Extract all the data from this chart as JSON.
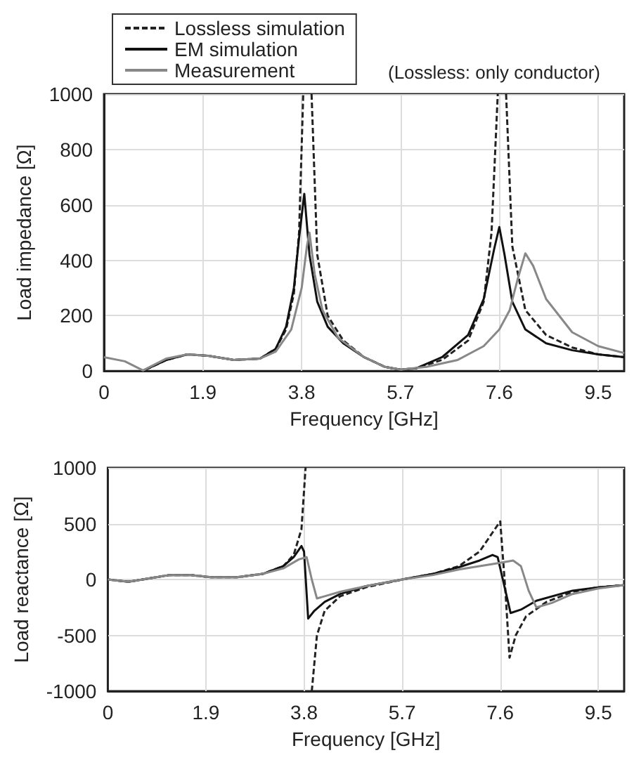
{
  "chart_data": [
    {
      "type": "line",
      "xlabel": "Frequency [GHz]",
      "ylabel": "Load impedance [Ω]",
      "annotations": [
        "(Lossless: only conductor)"
      ],
      "xlim": [
        0,
        10
      ],
      "xticks": [
        0,
        1.9,
        3.8,
        5.7,
        7.6,
        9.5
      ],
      "ylim": [
        0,
        1000
      ],
      "yticks": [
        0,
        200,
        400,
        600,
        800,
        1000
      ],
      "grid": true,
      "legend": "top left",
      "marker": "none",
      "series": [
        {
          "name": "Lossless simulation",
          "color": "#222222",
          "line_style": "dashed",
          "x": [
            0.8,
            1.2,
            1.6,
            2.0,
            2.5,
            3.0,
            3.3,
            3.5,
            3.65,
            3.75,
            3.83,
            3.91,
            3.99,
            4.1,
            4.3,
            4.6,
            5.0,
            5.4,
            5.7,
            6.0,
            6.5,
            7.0,
            7.3,
            7.45,
            7.57,
            7.65,
            7.73,
            7.85,
            8.1,
            8.5,
            9.0,
            9.5,
            10
          ],
          "values": [
            5,
            40,
            60,
            55,
            40,
            45,
            80,
            150,
            280,
            500,
            1000,
            null,
            1000,
            420,
            200,
            110,
            50,
            15,
            5,
            10,
            40,
            110,
            250,
            500,
            1000,
            null,
            1000,
            450,
            220,
            130,
            85,
            60,
            50
          ]
        },
        {
          "name": "EM simulation",
          "color": "#111111",
          "line_style": "solid",
          "x": [
            0.8,
            1.2,
            1.6,
            2.0,
            2.5,
            3.0,
            3.3,
            3.5,
            3.65,
            3.75,
            3.85,
            3.95,
            4.1,
            4.3,
            4.6,
            5.0,
            5.4,
            5.7,
            6.0,
            6.5,
            7.0,
            7.3,
            7.5,
            7.6,
            7.7,
            7.85,
            8.1,
            8.5,
            9.0,
            9.5,
            10
          ],
          "values": [
            5,
            40,
            60,
            55,
            40,
            45,
            80,
            160,
            300,
            480,
            640,
            420,
            250,
            160,
            100,
            50,
            15,
            5,
            10,
            50,
            130,
            260,
            440,
            520,
            420,
            250,
            150,
            100,
            75,
            60,
            50
          ]
        },
        {
          "name": "Measurement",
          "color": "#888888",
          "line_style": "solid",
          "x": [
            0,
            0.4,
            0.75,
            1.2,
            1.6,
            2.0,
            2.5,
            3.0,
            3.3,
            3.6,
            3.8,
            3.9,
            3.95,
            4.05,
            4.2,
            4.5,
            5.0,
            5.4,
            5.7,
            6.2,
            6.8,
            7.3,
            7.6,
            7.8,
            7.95,
            8.1,
            8.25,
            8.5,
            9.0,
            9.5,
            10
          ],
          "values": [
            50,
            35,
            2,
            45,
            60,
            55,
            40,
            45,
            70,
            150,
            300,
            450,
            500,
            350,
            220,
            120,
            50,
            15,
            5,
            15,
            40,
            90,
            150,
            220,
            330,
            425,
            380,
            260,
            140,
            90,
            65
          ]
        }
      ]
    },
    {
      "type": "line",
      "xlabel": "Frequency [GHz]",
      "ylabel": "Load reactance [Ω]",
      "xlim": [
        0,
        10
      ],
      "xticks": [
        0,
        1.9,
        3.8,
        5.7,
        7.6,
        9.5
      ],
      "ylim": [
        -1000,
        1000
      ],
      "yticks": [
        -1000,
        -500,
        0,
        500,
        1000
      ],
      "grid": true,
      "marker": "none",
      "series": [
        {
          "color": "#222222",
          "line_style": "dashed",
          "x": [
            0,
            0.4,
            0.8,
            1.2,
            1.6,
            2.0,
            2.5,
            3.0,
            3.4,
            3.6,
            3.75,
            3.83,
            3.88,
            3.95,
            4.05,
            4.2,
            4.5,
            5.0,
            5.7,
            6.3,
            6.8,
            7.2,
            7.45,
            7.6,
            7.7,
            7.78,
            7.9,
            8.1,
            8.5,
            9.0,
            9.5,
            10
          ],
          "values": [
            0,
            -20,
            10,
            40,
            40,
            20,
            20,
            50,
            120,
            220,
            450,
            1000,
            null,
            -1000,
            -500,
            -280,
            -150,
            -70,
            0,
            50,
            120,
            250,
            420,
            520,
            -100,
            -700,
            -500,
            -330,
            -200,
            -110,
            -70,
            -50
          ]
        },
        {
          "color": "#111111",
          "line_style": "solid",
          "x": [
            0,
            0.4,
            0.8,
            1.2,
            1.6,
            2.0,
            2.5,
            3.0,
            3.4,
            3.6,
            3.75,
            3.8,
            3.88,
            4.0,
            4.2,
            4.5,
            5.0,
            5.7,
            6.3,
            6.8,
            7.2,
            7.45,
            7.55,
            7.7,
            7.8,
            8.0,
            8.3,
            9.0,
            9.5,
            10
          ],
          "values": [
            0,
            -20,
            10,
            40,
            40,
            20,
            20,
            50,
            120,
            200,
            300,
            250,
            -350,
            -280,
            -200,
            -130,
            -60,
            0,
            50,
            110,
            170,
            220,
            200,
            -100,
            -300,
            -270,
            -190,
            -100,
            -70,
            -50
          ]
        },
        {
          "color": "#888888",
          "line_style": "solid",
          "x": [
            0,
            0.4,
            0.8,
            1.2,
            1.6,
            2.0,
            2.5,
            3.0,
            3.4,
            3.7,
            3.85,
            3.95,
            4.05,
            4.2,
            4.5,
            5.0,
            5.7,
            6.3,
            6.8,
            7.2,
            7.6,
            7.85,
            8.0,
            8.15,
            8.3,
            8.6,
            9.0,
            9.5,
            10
          ],
          "values": [
            0,
            -20,
            10,
            40,
            40,
            20,
            20,
            50,
            100,
            180,
            200,
            0,
            -170,
            -150,
            -110,
            -60,
            0,
            40,
            90,
            120,
            150,
            170,
            120,
            -100,
            -250,
            -210,
            -130,
            -80,
            -50
          ]
        }
      ]
    }
  ]
}
